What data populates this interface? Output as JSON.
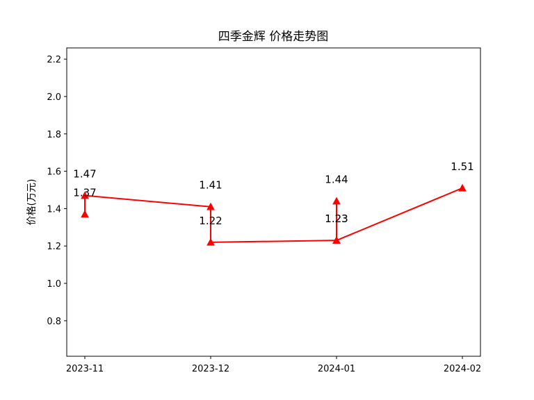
{
  "chart_data": {
    "type": "line",
    "title": "四季金辉 价格走势图",
    "xlabel": "",
    "ylabel": "价格(万元)",
    "categories": [
      "2023-11",
      "2023-12",
      "2024-01",
      "2024-02"
    ],
    "ylim": [
      0.61,
      2.26
    ],
    "yticks": [
      0.8,
      1.0,
      1.2,
      1.4,
      1.6,
      1.8,
      2.0,
      2.2
    ],
    "ytick_labels": [
      "0.8",
      "1.0",
      "1.2",
      "1.4",
      "1.6",
      "1.8",
      "2.0",
      "2.2"
    ],
    "grid": false,
    "legend": "none",
    "color": "#ff0000",
    "points": [
      {
        "x": "2023-11",
        "y": 1.37,
        "label": "1.37"
      },
      {
        "x": "2023-11",
        "y": 1.47,
        "label": "1.47"
      },
      {
        "x": "2023-12",
        "y": 1.41,
        "label": "1.41"
      },
      {
        "x": "2023-12",
        "y": 1.22,
        "label": "1.22"
      },
      {
        "x": "2024-01",
        "y": 1.23,
        "label": "1.23"
      },
      {
        "x": "2024-01",
        "y": 1.44,
        "label": "1.44"
      },
      {
        "x": "2024-01",
        "y": 1.23,
        "label": "1.23"
      },
      {
        "x": "2024-02",
        "y": 1.51,
        "label": "1.51"
      }
    ]
  }
}
